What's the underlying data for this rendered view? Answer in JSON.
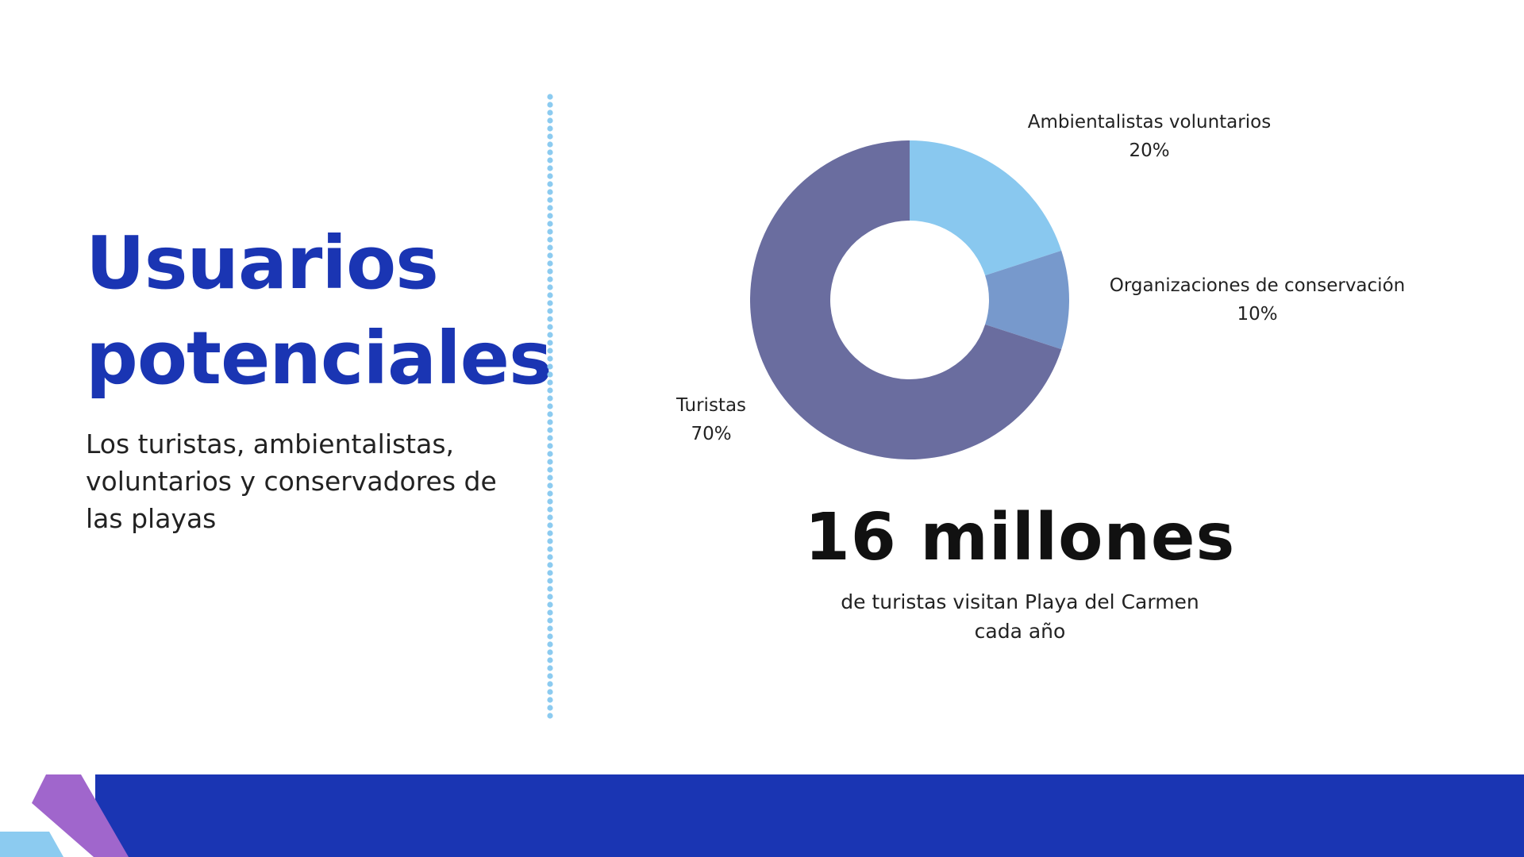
{
  "slide": {
    "title": "Usuarios potenciales",
    "subtitle": "Los turistas, ambientalistas, voluntarios y conservadores de las playas"
  },
  "stat": {
    "value": "16 millones",
    "caption": "de turistas visitan Playa del Carmen cada año"
  },
  "colors": {
    "title": "#1a35b3",
    "divider_dots": "#8ccbf0",
    "footer_band": "#1a35b3",
    "footer_purple": "#a066cc",
    "footer_light": "#8ccbf0"
  },
  "chart_data": {
    "type": "pie",
    "variant": "donut",
    "title": "",
    "slices": [
      {
        "label": "Ambientalistas voluntarios",
        "value": 20,
        "value_label": "20%",
        "color": "#89c8ef"
      },
      {
        "label": "Organizaciones de conservación",
        "value": 10,
        "value_label": "10%",
        "color": "#7799cc"
      },
      {
        "label": "Turistas",
        "value": 70,
        "value_label": "70%",
        "color": "#6a6d9f"
      }
    ],
    "start_angle": "12 o'clock",
    "direction": "clockwise",
    "legend": "none"
  }
}
